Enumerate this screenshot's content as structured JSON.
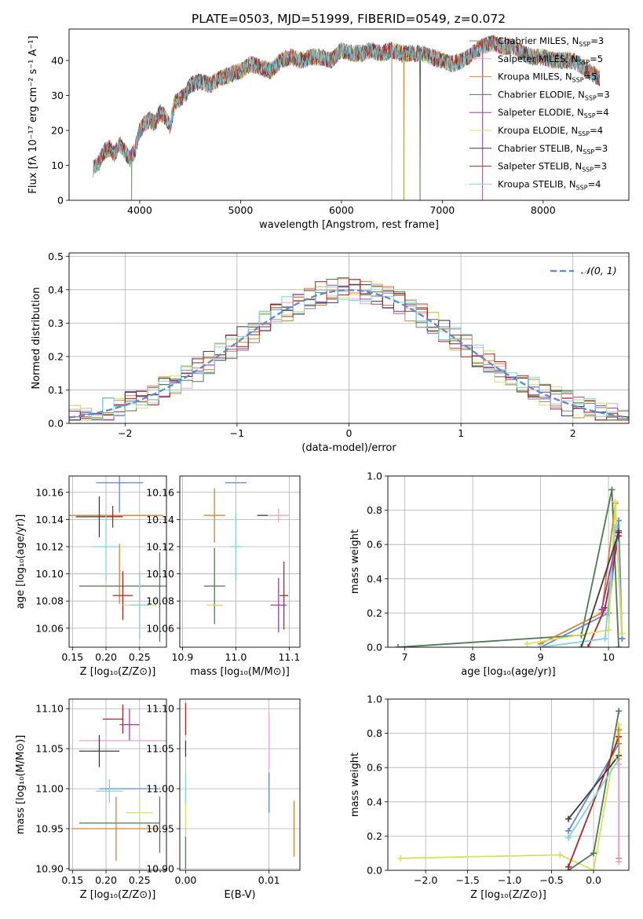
{
  "figure_title": "PLATE=0503, MJD=51999, FIBERID=0549, z=0.072",
  "chart_data": [
    {
      "id": "spectrum",
      "type": "line",
      "xlabel": "wavelength [Angstrom, rest frame]",
      "ylabel": "Flux [fλ 10⁻¹⁷ erg cm⁻² s⁻¹ A⁻¹]",
      "xlim": [
        3300,
        8850
      ],
      "ylim": [
        0,
        49
      ],
      "xticks": [
        "4000",
        "5000",
        "6000",
        "7000",
        "8000"
      ],
      "xtick_values": [
        4000,
        5000,
        6000,
        7000,
        8000
      ],
      "yticks": [
        "0",
        "10",
        "20",
        "30",
        "40"
      ],
      "ytick_values": [
        0,
        10,
        20,
        30,
        40
      ],
      "grid": false,
      "legend_position": "top-right",
      "legend": [
        {
          "label": "Chabrier MILES, N",
          "sub": "SSP",
          "eq": "=3",
          "color": "#808080"
        },
        {
          "label": "Salpeter MILES, N",
          "sub": "SSP",
          "eq": "=5",
          "color": "#e9a3c9"
        },
        {
          "label": "Kroupa MILES, N",
          "sub": "SSP",
          "eq": "=5",
          "color": "#d9822b"
        },
        {
          "label": "Chabrier ELODIE, N",
          "sub": "SSP",
          "eq": "=3",
          "color": "#4d7a50"
        },
        {
          "label": "Salpeter ELODIE, N",
          "sub": "SSP",
          "eq": "=4",
          "color": "#9b3fa6"
        },
        {
          "label": "Kroupa ELODIE, N",
          "sub": "SSP",
          "eq": "=4",
          "color": "#d9e05b"
        },
        {
          "label": "Chabrier STELIB, N",
          "sub": "SSP",
          "eq": "=3",
          "color": "#3b3b3b"
        },
        {
          "label": "Salpeter STELIB, N",
          "sub": "SSP",
          "eq": "=3",
          "color": "#b22222"
        },
        {
          "label": "Kroupa STELIB, N",
          "sub": "SSP",
          "eq": "=4",
          "color": "#7fd3dc"
        }
      ],
      "envelope": {
        "x": [
          3540,
          3600,
          3650,
          3700,
          3750,
          3800,
          3850,
          3900,
          3950,
          4000,
          4050,
          4100,
          4150,
          4200,
          4250,
          4300,
          4350,
          4400,
          4450,
          4500,
          4600,
          4700,
          4800,
          4900,
          5000,
          5100,
          5200,
          5300,
          5400,
          5500,
          5600,
          5700,
          5800,
          5900,
          6000,
          6100,
          6200,
          6300,
          6400,
          6500,
          6600,
          6700,
          6800,
          6900,
          7000,
          7100,
          7200,
          7300,
          7400,
          7500,
          7600,
          7700,
          7800,
          7900,
          8000,
          8100,
          8200,
          8300,
          8400,
          8500,
          8560
        ],
        "y": [
          9,
          11,
          14,
          15,
          13,
          16,
          14,
          12,
          14,
          20,
          22,
          23,
          22,
          25,
          24,
          21,
          28,
          29,
          30,
          33,
          34,
          33,
          35,
          36,
          37,
          39,
          38,
          37,
          40,
          41,
          40,
          41,
          41,
          40,
          43,
          42,
          42,
          43,
          42,
          43,
          42,
          42,
          42,
          41,
          40,
          39,
          40,
          42,
          44,
          45,
          44,
          44,
          42,
          41,
          41,
          40,
          40,
          40,
          38,
          36,
          35
        ]
      },
      "dips": [
        {
          "x": 3920,
          "to": 0
        },
        {
          "x": 6500,
          "to": 0
        },
        {
          "x": 6620,
          "to": 0
        },
        {
          "x": 6780,
          "to": 0
        },
        {
          "x": 7400,
          "to": 0
        }
      ]
    },
    {
      "id": "residuals",
      "type": "bar",
      "xlabel": "(data-model)/error",
      "ylabel": "Normed distribution",
      "xlim": [
        -2.5,
        2.5
      ],
      "ylim": [
        0,
        0.51
      ],
      "xticks": [
        "−2",
        "−1",
        "0",
        "1",
        "2"
      ],
      "xtick_values": [
        -2,
        -1,
        0,
        1,
        2
      ],
      "yticks": [
        "0.0",
        "0.1",
        "0.2",
        "0.3",
        "0.4",
        "0.5"
      ],
      "ytick_values": [
        0,
        0.1,
        0.2,
        0.3,
        0.4,
        0.5
      ],
      "grid": true,
      "legend_position": "top-right",
      "legend": [
        {
          "label": "𝒩(0, 1)",
          "color": "#5b8bd6",
          "style": "dashed"
        }
      ],
      "gaussian": {
        "mu": 0,
        "sigma": 1
      },
      "bin_width": 0.1
    },
    {
      "id": "age-vs-Z",
      "type": "scatter",
      "xlabel": "Z [log₁₀(Z/Z⊙)]",
      "ylabel": "age  [log₁₀(age/yr)]",
      "xlim": [
        0.145,
        0.29
      ],
      "ylim": [
        10.046,
        10.172
      ],
      "xticks": [
        "0.15",
        "0.20",
        "0.25"
      ],
      "xtick_values": [
        0.15,
        0.2,
        0.25
      ],
      "yticks": [
        "10.06",
        "10.08",
        "10.10",
        "10.12",
        "10.14",
        "10.16"
      ],
      "ytick_values": [
        10.06,
        10.08,
        10.1,
        10.12,
        10.14,
        10.16
      ],
      "grid": true,
      "points": [
        {
          "x": 0.22,
          "y": 10.167,
          "xerr": 0.035,
          "yerr": 0.022,
          "color": "#5b8bd6"
        },
        {
          "x": 0.215,
          "y": 10.143,
          "xerr": 0.06,
          "yerr": 0.0,
          "color": "#e9a3c9"
        },
        {
          "x": 0.215,
          "y": 10.143,
          "xerr": 0.07,
          "yerr": 0.0,
          "color": "#d9822b"
        },
        {
          "x": 0.19,
          "y": 10.142,
          "xerr": 0.035,
          "yerr": 0.015,
          "color": "#3b3b3b"
        },
        {
          "x": 0.21,
          "y": 10.142,
          "xerr": 0.015,
          "yerr": 0.008,
          "color": "#b22222"
        },
        {
          "x": 0.2,
          "y": 10.12,
          "xerr": 0.02,
          "yerr": 0.025,
          "color": "#7fd3dc"
        },
        {
          "x": 0.22,
          "y": 10.1,
          "xerr": 0.0,
          "yerr": 0.022,
          "color": "#d9822b"
        },
        {
          "x": 0.23,
          "y": 10.091,
          "xerr": 0.07,
          "yerr": 0.0,
          "color": "#4d7a50"
        },
        {
          "x": 0.28,
          "y": 10.083,
          "xerr": 0.0,
          "yerr": 0.033,
          "color": "#4d7a50"
        },
        {
          "x": 0.225,
          "y": 10.084,
          "xerr": 0.015,
          "yerr": 0.018,
          "color": "#b22222"
        },
        {
          "x": 0.25,
          "y": 10.077,
          "xerr": 0.025,
          "yerr": 0.022,
          "color": "#d9e05b"
        },
        {
          "x": 0.25,
          "y": 10.077,
          "xerr": 0.015,
          "yerr": 0.025,
          "color": "#7fd3dc"
        }
      ]
    },
    {
      "id": "age-vs-mass",
      "type": "scatter",
      "xlabel": "mass [log₁₀(M/M⊙)]",
      "ylabel": "",
      "xlim": [
        10.895,
        11.12
      ],
      "ylim": [
        10.046,
        10.172
      ],
      "xticks": [
        "10.9",
        "11.0",
        "11.1"
      ],
      "xtick_values": [
        10.9,
        11.0,
        11.1
      ],
      "yticks": [
        "10.06",
        "10.08",
        "10.10",
        "10.12",
        "10.14",
        "10.16"
      ],
      "ytick_values": [
        10.06,
        10.08,
        10.1,
        10.12,
        10.14,
        10.16
      ],
      "grid": true,
      "points": [
        {
          "x": 11.0,
          "y": 10.167,
          "xerr": 0.02,
          "yerr": 0.0,
          "color": "#5b8bd6"
        },
        {
          "x": 10.96,
          "y": 10.143,
          "xerr": 0.02,
          "yerr": 0.02,
          "color": "#d9822b"
        },
        {
          "x": 11.05,
          "y": 10.143,
          "xerr": 0.01,
          "yerr": 0.0,
          "color": "#3b3b3b"
        },
        {
          "x": 11.08,
          "y": 10.143,
          "xerr": 0.02,
          "yerr": 0.005,
          "color": "#e9a3c9"
        },
        {
          "x": 11.0,
          "y": 10.12,
          "xerr": 0.01,
          "yerr": 0.025,
          "color": "#7fd3dc"
        },
        {
          "x": 10.96,
          "y": 10.091,
          "xerr": 0.02,
          "yerr": 0.028,
          "color": "#4d7a50"
        },
        {
          "x": 10.96,
          "y": 10.077,
          "xerr": 0.015,
          "yerr": 0.0,
          "color": "#d9e05b"
        },
        {
          "x": 11.09,
          "y": 10.084,
          "xerr": 0.008,
          "yerr": 0.025,
          "color": "#b22222"
        },
        {
          "x": 11.08,
          "y": 10.077,
          "xerr": 0.015,
          "yerr": 0.02,
          "color": "#9b3fa6"
        }
      ]
    },
    {
      "id": "weight-vs-age",
      "type": "line",
      "xlabel": "age  [log₁₀(age/yr)]",
      "ylabel": "mass weight",
      "xlim": [
        6.75,
        10.3
      ],
      "ylim": [
        0,
        1.0
      ],
      "xticks": [
        "7",
        "8",
        "9",
        "10"
      ],
      "xtick_values": [
        7,
        8,
        9,
        10
      ],
      "yticks": [
        "0.0",
        "0.2",
        "0.4",
        "0.6",
        "0.8",
        "1.0"
      ],
      "ytick_values": [
        0,
        0.2,
        0.4,
        0.6,
        0.8,
        1.0
      ],
      "grid": true,
      "series": [
        {
          "color": "#4d7a50",
          "x": [
            6.9,
            9.6,
            10.05,
            10.15
          ],
          "y": [
            0.0,
            0.07,
            0.92,
            0.0
          ]
        },
        {
          "color": "#d9822b",
          "x": [
            9.0,
            9.9,
            10.1,
            10.2
          ],
          "y": [
            0.02,
            0.2,
            0.84,
            0.05
          ]
        },
        {
          "color": "#5b8bd6",
          "x": [
            9.0,
            10.0,
            10.15,
            10.2
          ],
          "y": [
            0.0,
            0.2,
            0.74,
            0.05
          ]
        },
        {
          "color": "#b22222",
          "x": [
            9.7,
            9.95,
            10.15
          ],
          "y": [
            0.0,
            0.23,
            0.65
          ]
        },
        {
          "color": "#d9e05b",
          "x": [
            8.8,
            10.0,
            10.1,
            10.2
          ],
          "y": [
            0.02,
            0.1,
            0.85,
            0.08
          ]
        },
        {
          "color": "#7fd3dc",
          "x": [
            9.0,
            9.95,
            10.1
          ],
          "y": [
            0.0,
            0.05,
            0.7
          ]
        },
        {
          "color": "#9b3fa6",
          "x": [
            9.9,
            10.15
          ],
          "y": [
            0.22,
            0.68
          ]
        },
        {
          "color": "#3b3b3b",
          "x": [
            9.6,
            10.15
          ],
          "y": [
            0.0,
            0.67
          ]
        }
      ]
    },
    {
      "id": "mass-vs-Z",
      "type": "scatter",
      "xlabel": "Z [log₁₀(Z/Z⊙)]",
      "ylabel": "mass [log₁₀(M/M⊙)]",
      "xlim": [
        0.145,
        0.29
      ],
      "ylim": [
        10.898,
        11.112
      ],
      "xticks": [
        "0.15",
        "0.20",
        "0.25"
      ],
      "xtick_values": [
        0.15,
        0.2,
        0.25
      ],
      "yticks": [
        "10.90",
        "10.95",
        "11.00",
        "11.05",
        "11.10"
      ],
      "ytick_values": [
        10.9,
        10.95,
        11.0,
        11.05,
        11.1
      ],
      "grid": true,
      "points": [
        {
          "x": 0.21,
          "y": 11.087,
          "xerr": 0.015,
          "yerr": 0.0,
          "color": "#b22222"
        },
        {
          "x": 0.225,
          "y": 11.087,
          "xerr": 0.0,
          "yerr": 0.018,
          "color": "#b22222"
        },
        {
          "x": 0.235,
          "y": 11.08,
          "xerr": 0.015,
          "yerr": 0.02,
          "color": "#9b3fa6"
        },
        {
          "x": 0.225,
          "y": 11.06,
          "xerr": 0.065,
          "yerr": 0.0,
          "color": "#e9a3c9"
        },
        {
          "x": 0.19,
          "y": 11.047,
          "xerr": 0.03,
          "yerr": 0.02,
          "color": "#3b3b3b"
        },
        {
          "x": 0.235,
          "y": 11.0,
          "xerr": 0.045,
          "yerr": 0.0,
          "color": "#5b8bd6"
        },
        {
          "x": 0.205,
          "y": 10.997,
          "xerr": 0.02,
          "yerr": 0.015,
          "color": "#7fd3dc"
        },
        {
          "x": 0.25,
          "y": 10.97,
          "xerr": 0.02,
          "yerr": 0.02,
          "color": "#d9e05b"
        },
        {
          "x": 0.22,
          "y": 10.957,
          "xerr": 0.06,
          "yerr": 0.0,
          "color": "#4d7a50"
        },
        {
          "x": 0.28,
          "y": 10.955,
          "xerr": 0.0,
          "yerr": 0.035,
          "color": "#4d7a50"
        },
        {
          "x": 0.215,
          "y": 10.95,
          "xerr": 0.065,
          "yerr": 0.04,
          "color": "#d9822b"
        }
      ]
    },
    {
      "id": "mass-vs-EBV",
      "type": "scatter",
      "xlabel": "E(B-V)",
      "ylabel": "",
      "xlim": [
        -0.0007,
        0.0137
      ],
      "ylim": [
        10.898,
        11.112
      ],
      "xticks": [
        "0.00",
        "0.01"
      ],
      "xtick_values": [
        0,
        0.01
      ],
      "yticks": [
        "10.90",
        "10.95",
        "11.00",
        "11.05",
        "11.10"
      ],
      "ytick_values": [
        10.9,
        10.95,
        11.0,
        11.05,
        11.1
      ],
      "grid": true,
      "points": [
        {
          "x": 0.0,
          "y": 11.087,
          "xerr": 0,
          "yerr": 0.02,
          "color": "#b22222"
        },
        {
          "x": 0.0,
          "y": 11.05,
          "xerr": 0,
          "yerr": 0.01,
          "color": "#3b3b3b"
        },
        {
          "x": 0.0,
          "y": 11.0,
          "xerr": 0,
          "yerr": 0.02,
          "color": "#7fd3dc"
        },
        {
          "x": 0.0,
          "y": 10.965,
          "xerr": 0,
          "yerr": 0.015,
          "color": "#d9e05b"
        },
        {
          "x": 0.0,
          "y": 10.92,
          "xerr": 0,
          "yerr": 0.02,
          "color": "#4d7a50"
        },
        {
          "x": 0.01,
          "y": 11.06,
          "xerr": 0,
          "yerr": 0.035,
          "color": "#e9a3c9"
        },
        {
          "x": 0.01,
          "y": 10.995,
          "xerr": 0,
          "yerr": 0.025,
          "color": "#5b8bd6"
        },
        {
          "x": 0.013,
          "y": 10.95,
          "xerr": 0,
          "yerr": 0.035,
          "color": "#d9822b"
        }
      ]
    },
    {
      "id": "weight-vs-Z",
      "type": "line",
      "xlabel": "Z [log₁₀(Z/Z⊙)]",
      "ylabel": "mass weight",
      "xlim": [
        -2.45,
        0.42
      ],
      "ylim": [
        0,
        1.0
      ],
      "xticks": [
        "−2.0",
        "−1.5",
        "−1.0",
        "−0.5",
        "0.0"
      ],
      "xtick_values": [
        -2,
        -1.5,
        -1,
        -0.5,
        0
      ],
      "yticks": [
        "0.0",
        "0.2",
        "0.4",
        "0.6",
        "0.8",
        "1.0"
      ],
      "ytick_values": [
        0,
        0.2,
        0.4,
        0.6,
        0.8,
        1.0
      ],
      "grid": true,
      "series": [
        {
          "color": "#d9e05b",
          "x": [
            -2.3,
            -0.4,
            0.0,
            0.3
          ],
          "y": [
            0.07,
            0.09,
            0.0,
            0.85
          ]
        },
        {
          "color": "#4d7a50",
          "x": [
            -0.3,
            0.0,
            0.3
          ],
          "y": [
            0.0,
            0.1,
            0.93
          ]
        },
        {
          "color": "#5b8bd6",
          "x": [
            -0.3,
            0.3
          ],
          "y": [
            0.23,
            0.74
          ]
        },
        {
          "color": "#3b3b3b",
          "x": [
            -0.3,
            0.3
          ],
          "y": [
            0.3,
            0.67
          ]
        },
        {
          "color": "#b22222",
          "x": [
            -0.3,
            0.3
          ],
          "y": [
            0.02,
            0.78
          ]
        },
        {
          "color": "#7fd3dc",
          "x": [
            -0.3,
            0.3
          ],
          "y": [
            0.19,
            0.65
          ]
        },
        {
          "color": "#d9822b",
          "x": [
            0.3,
            0.3
          ],
          "y": [
            0.07,
            0.82
          ]
        },
        {
          "color": "#e9a3c9",
          "x": [
            0.3,
            0.3
          ],
          "y": [
            0.05,
            0.62
          ]
        }
      ]
    }
  ]
}
